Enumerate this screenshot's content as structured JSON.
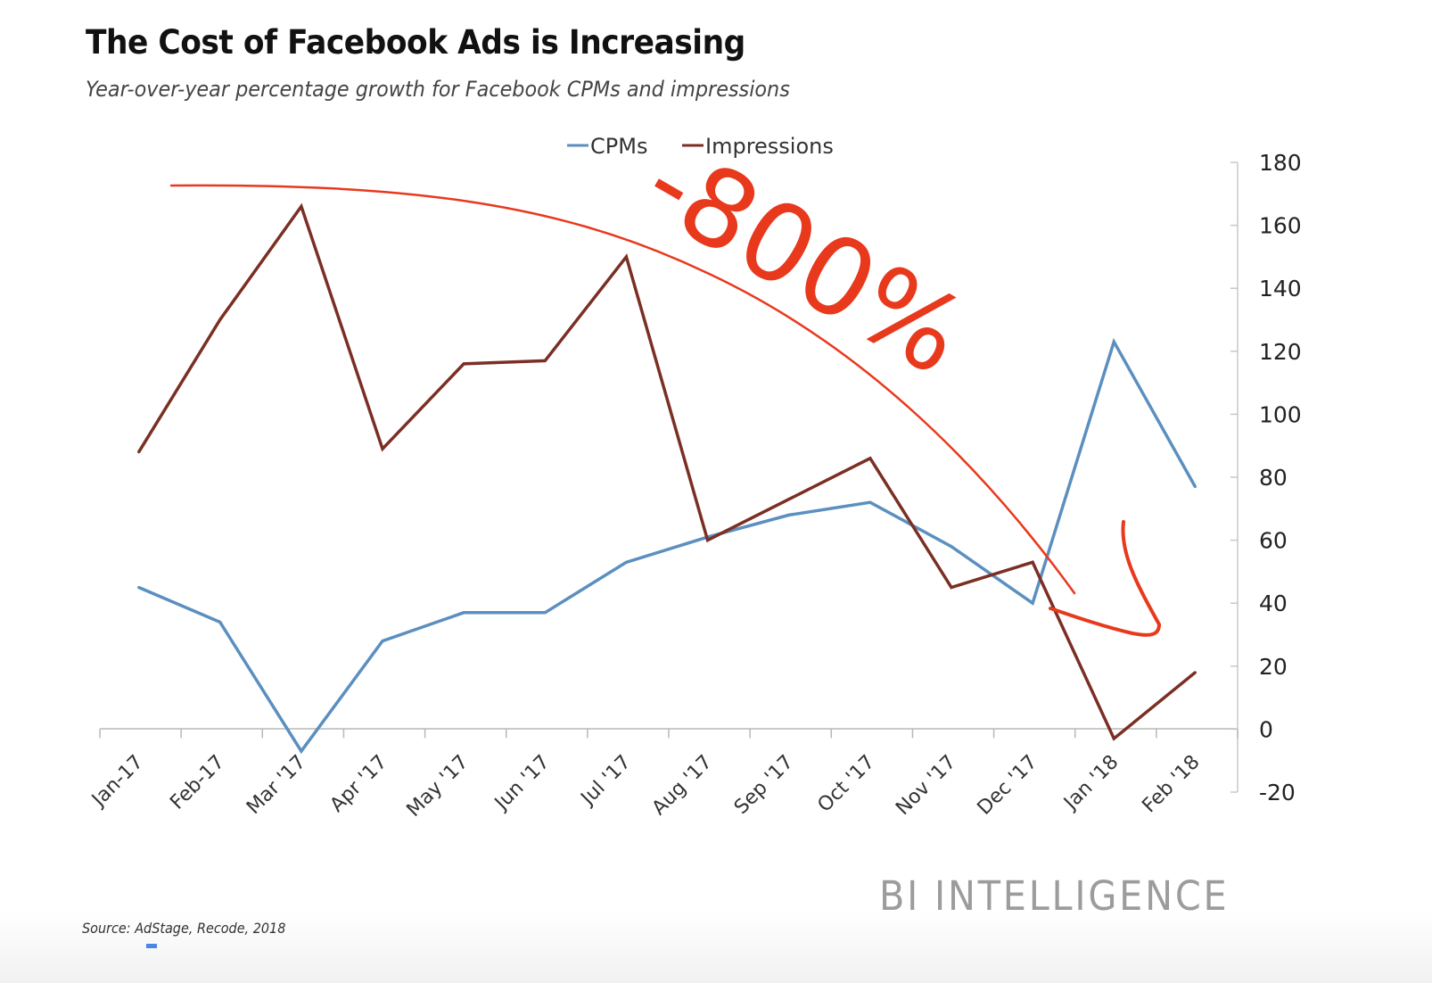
{
  "header": {
    "title": "The Cost of Facebook Ads is Increasing",
    "subtitle": "Year-over-year percentage growth for Facebook CPMs and impressions"
  },
  "footer": {
    "source": "Source: AdStage, Recode, 2018",
    "brand": "BI INTELLIGENCE"
  },
  "annotation": {
    "text": "-800%",
    "color": "#e8391d",
    "kind": "handwritten curved arrow pointing down-right"
  },
  "chart_data": {
    "type": "line",
    "title": "The Cost of Facebook Ads is Increasing",
    "subtitle": "Year-over-year percentage growth for Facebook CPMs and impressions",
    "xlabel": "",
    "ylabel": "",
    "categories": [
      "Jan-17",
      "Feb-17",
      "Mar '17",
      "Apr '17",
      "May '17",
      "Jun '17",
      "Jul '17",
      "Aug '17",
      "Sep '17",
      "Oct '17",
      "Nov '17",
      "Dec '17",
      "Jan '18",
      "Feb '18"
    ],
    "series": [
      {
        "name": "CPMs",
        "color": "#5b8fbf",
        "values": [
          45,
          34,
          -7,
          28,
          37,
          37,
          53,
          61,
          68,
          72,
          58,
          40,
          123,
          77
        ]
      },
      {
        "name": "Impressions",
        "color": "#7b2f24",
        "values": [
          88,
          130,
          166,
          89,
          116,
          117,
          150,
          60,
          73,
          86,
          45,
          53,
          -3,
          18
        ]
      }
    ],
    "ylim": [
      -20,
      180
    ],
    "yticks": [
      180,
      160,
      140,
      120,
      100,
      80,
      60,
      40,
      20,
      0,
      -20
    ],
    "y_axis_side": "right",
    "grid": false,
    "legend": {
      "position": "top-center",
      "entries": [
        "CPMs",
        "Impressions"
      ]
    }
  }
}
